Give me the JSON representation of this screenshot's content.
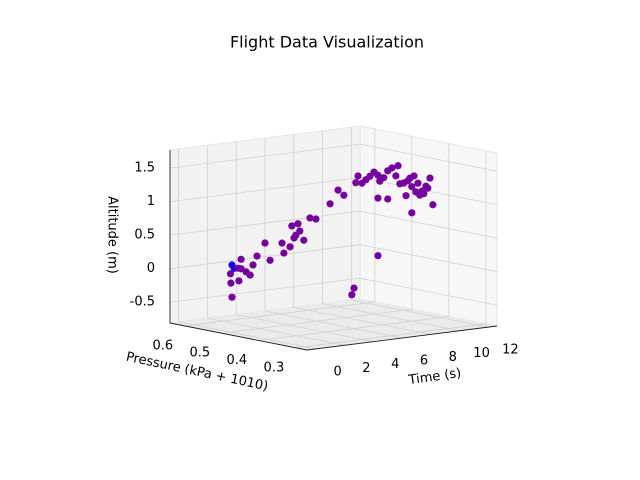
{
  "chart_data": {
    "type": "scatter3d",
    "title": "Flight Data Visualization",
    "x_label": "Time (s)",
    "y_label": "Pressure (kPa + 1010)",
    "z_label": "Altitude (m)",
    "xlim": [
      -0.6,
      12.6
    ],
    "ylim": [
      0.27,
      0.64
    ],
    "zlim": [
      -0.81,
      1.77
    ],
    "xticks": [
      0,
      2,
      4,
      6,
      8,
      10,
      12
    ],
    "yticks": [
      0.3,
      0.4,
      0.5,
      0.6
    ],
    "zticks": [
      -0.5,
      0.0,
      0.5,
      1.0,
      1.5
    ],
    "grid": true,
    "x": [
      0.08,
      0.18,
      0.38,
      0.53,
      0.0,
      0.03,
      0.08,
      0.43,
      0.53,
      0.78,
      0.98,
      1.13,
      1.33,
      1.73,
      1.98,
      2.58,
      2.68,
      2.98,
      3.08,
      3.18,
      3.28,
      3.38,
      3.48,
      3.68,
      3.98,
      4.29,
      4.99,
      5.39,
      5.69,
      6.29,
      6.39,
      6.59,
      6.79,
      6.99,
      7.19,
      7.39,
      7.49,
      7.69,
      7.89,
      8.1,
      8.3,
      8.4,
      8.5,
      8.7,
      8.8,
      8.9,
      9.0,
      9.1,
      9.2,
      9.3,
      9.4,
      9.5,
      9.6,
      9.7,
      9.8,
      9.9,
      10.0,
      10.15,
      9.1,
      7.89,
      7.39,
      7.39,
      6.19,
      6.09
    ],
    "y": [
      0.499,
      0.497,
      0.494,
      0.492,
      0.5,
      0.5,
      0.499,
      0.494,
      0.492,
      0.488,
      0.485,
      0.483,
      0.48,
      0.474,
      0.47,
      0.461,
      0.46,
      0.455,
      0.454,
      0.452,
      0.451,
      0.449,
      0.448,
      0.445,
      0.44,
      0.436,
      0.425,
      0.419,
      0.415,
      0.406,
      0.404,
      0.401,
      0.398,
      0.395,
      0.392,
      0.389,
      0.388,
      0.385,
      0.382,
      0.379,
      0.376,
      0.374,
      0.373,
      0.37,
      0.368,
      0.367,
      0.365,
      0.364,
      0.362,
      0.361,
      0.359,
      0.358,
      0.356,
      0.355,
      0.353,
      0.352,
      0.35,
      0.348,
      0.364,
      0.382,
      0.389,
      0.389,
      0.407,
      0.409
    ],
    "z": [
      0.19,
      0.14,
      0.14,
      0.13,
      0.06,
      -0.08,
      -0.29,
      -0.05,
      0.27,
      0.08,
      0.03,
      0.18,
      0.31,
      0.5,
      0.24,
      0.49,
      0.34,
      0.43,
      0.74,
      0.56,
      0.6,
      0.77,
      0.66,
      0.52,
      0.85,
      0.83,
      1.05,
      1.25,
      1.17,
      1.35,
      1.45,
      1.34,
      1.39,
      1.44,
      1.5,
      1.45,
      1.36,
      1.41,
      1.51,
      1.55,
      1.43,
      1.58,
      1.31,
      1.32,
      1.13,
      1.35,
      1.39,
      1.26,
      1.42,
      1.18,
      1.31,
      1.13,
      1.19,
      1.15,
      1.26,
      1.23,
      1.38,
      0.98,
      0.87,
      1.09,
      1.11,
      0.25,
      -0.22,
      -0.32
    ],
    "early_color": "#1a00e0",
    "color": "#75009f",
    "early_count": 2
  }
}
